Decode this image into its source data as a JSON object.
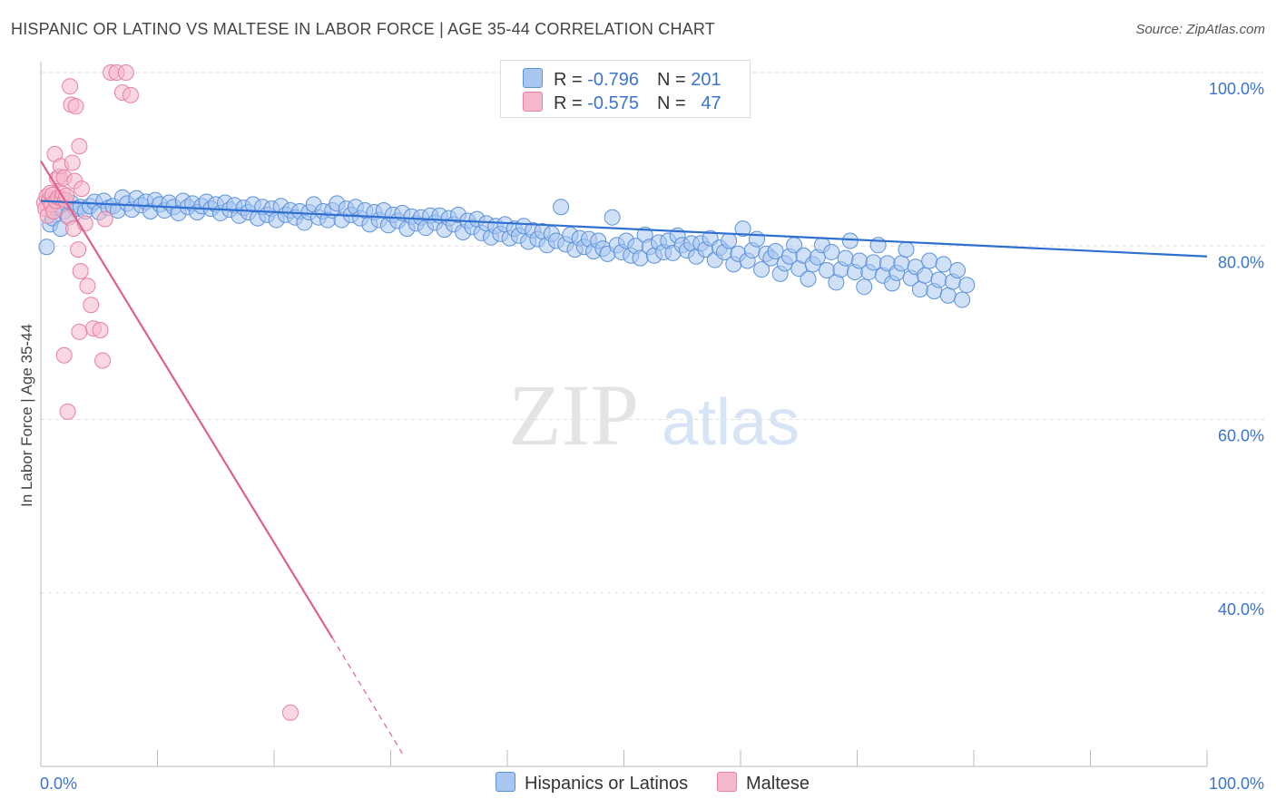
{
  "title": "HISPANIC OR LATINO VS MALTESE IN LABOR FORCE | AGE 35-44 CORRELATION CHART",
  "source": "Source: ZipAtlas.com",
  "watermark": {
    "zip": "ZIP",
    "atlas": "atlas"
  },
  "legend_top": [
    {
      "r_label": "R = ",
      "r_value": "-0.796",
      "n_label": "N = ",
      "n_value": "201"
    },
    {
      "r_label": "R = ",
      "r_value": "-0.575",
      "n_label": "N = ",
      "n_value": "47"
    }
  ],
  "legend_bottom": [
    {
      "label": "Hispanics or Latinos"
    },
    {
      "label": "Maltese"
    }
  ],
  "colors": {
    "blue_fill": "#a9c6f0",
    "blue_stroke": "#5b92dc",
    "blue_line": "#2f6fd1",
    "pink_fill": "#f6b8cb",
    "pink_stroke": "#e97fa2",
    "pink_line": "#e0608c",
    "tick_label": "#3a74d0",
    "grid": "#dddddd"
  },
  "chart_data": {
    "type": "scatter",
    "title": "HISPANIC OR LATINO VS MALTESE IN LABOR FORCE | AGE 35-44 CORRELATION CHART",
    "xlabel": "",
    "ylabel": "In Labor Force | Age 35-44",
    "xlim": [
      0,
      100
    ],
    "ylim": [
      20,
      100
    ],
    "x_tick_labels": [
      "0.0%",
      "100.0%"
    ],
    "y_ticks": [
      100,
      80,
      60,
      40
    ],
    "y_tick_labels": [
      "100.0%",
      "80.0%",
      "60.0%",
      "40.0%"
    ],
    "grid": true,
    "legend_position": "top-center",
    "series": [
      {
        "name": "Hispanics or Latinos",
        "R": -0.796,
        "N": 201,
        "trend": {
          "x": [
            0,
            100
          ],
          "y": [
            85.2,
            78.8
          ]
        },
        "points": [
          [
            0.5,
            79.9
          ],
          [
            0.8,
            82.5
          ],
          [
            1.0,
            83.2
          ],
          [
            1.3,
            84.4
          ],
          [
            1.7,
            82.0
          ],
          [
            2.0,
            84.0
          ],
          [
            2.3,
            83.5
          ],
          [
            2.6,
            85.0
          ],
          [
            3.0,
            84.3
          ],
          [
            3.4,
            84.5
          ],
          [
            3.8,
            84.0
          ],
          [
            4.2,
            84.6
          ],
          [
            4.6,
            85.1
          ],
          [
            5.0,
            83.9
          ],
          [
            5.4,
            85.2
          ],
          [
            5.8,
            84.4
          ],
          [
            6.2,
            84.6
          ],
          [
            6.6,
            84.1
          ],
          [
            7.0,
            85.6
          ],
          [
            7.4,
            84.9
          ],
          [
            7.8,
            84.2
          ],
          [
            8.2,
            85.5
          ],
          [
            8.6,
            84.7
          ],
          [
            9.0,
            85.1
          ],
          [
            9.4,
            84.0
          ],
          [
            9.8,
            85.3
          ],
          [
            10.2,
            84.8
          ],
          [
            10.6,
            84.1
          ],
          [
            11.0,
            85.0
          ],
          [
            11.4,
            84.5
          ],
          [
            11.8,
            83.8
          ],
          [
            12.2,
            85.2
          ],
          [
            12.6,
            84.5
          ],
          [
            13.0,
            84.9
          ],
          [
            13.4,
            83.9
          ],
          [
            13.8,
            84.6
          ],
          [
            14.2,
            85.1
          ],
          [
            14.6,
            84.3
          ],
          [
            15.0,
            84.8
          ],
          [
            15.4,
            83.8
          ],
          [
            15.8,
            85.0
          ],
          [
            16.2,
            84.2
          ],
          [
            16.6,
            84.7
          ],
          [
            17.0,
            83.5
          ],
          [
            17.4,
            84.4
          ],
          [
            17.8,
            83.9
          ],
          [
            18.2,
            84.8
          ],
          [
            18.6,
            83.2
          ],
          [
            19.0,
            84.5
          ],
          [
            19.4,
            83.6
          ],
          [
            19.8,
            84.3
          ],
          [
            20.2,
            83.0
          ],
          [
            20.6,
            84.6
          ],
          [
            21.0,
            83.6
          ],
          [
            21.4,
            84.1
          ],
          [
            21.8,
            83.3
          ],
          [
            22.2,
            84.0
          ],
          [
            22.6,
            82.7
          ],
          [
            23.0,
            83.9
          ],
          [
            23.4,
            84.8
          ],
          [
            23.8,
            83.3
          ],
          [
            24.2,
            84.0
          ],
          [
            24.6,
            83.0
          ],
          [
            25.0,
            84.1
          ],
          [
            25.4,
            84.9
          ],
          [
            25.8,
            83.0
          ],
          [
            26.2,
            84.3
          ],
          [
            26.6,
            83.6
          ],
          [
            27.0,
            84.5
          ],
          [
            27.4,
            83.2
          ],
          [
            27.8,
            84.1
          ],
          [
            28.2,
            82.5
          ],
          [
            28.6,
            83.9
          ],
          [
            29.0,
            83.0
          ],
          [
            29.4,
            84.1
          ],
          [
            29.8,
            82.4
          ],
          [
            30.2,
            83.6
          ],
          [
            30.6,
            82.9
          ],
          [
            31.0,
            83.8
          ],
          [
            31.4,
            82.0
          ],
          [
            31.8,
            83.4
          ],
          [
            32.2,
            82.6
          ],
          [
            32.6,
            83.3
          ],
          [
            33.0,
            82.1
          ],
          [
            33.4,
            83.5
          ],
          [
            33.8,
            82.7
          ],
          [
            34.2,
            83.5
          ],
          [
            34.6,
            81.9
          ],
          [
            35.0,
            83.2
          ],
          [
            35.4,
            82.5
          ],
          [
            35.8,
            83.6
          ],
          [
            36.2,
            81.6
          ],
          [
            36.6,
            82.9
          ],
          [
            37.0,
            82.2
          ],
          [
            37.4,
            83.1
          ],
          [
            37.8,
            81.5
          ],
          [
            38.2,
            82.6
          ],
          [
            38.6,
            81.0
          ],
          [
            39.0,
            82.3
          ],
          [
            39.4,
            81.4
          ],
          [
            39.8,
            82.5
          ],
          [
            40.2,
            80.9
          ],
          [
            40.6,
            82.0
          ],
          [
            41.0,
            81.2
          ],
          [
            41.4,
            82.3
          ],
          [
            41.8,
            80.5
          ],
          [
            42.2,
            81.8
          ],
          [
            42.6,
            80.8
          ],
          [
            43.0,
            81.7
          ],
          [
            43.4,
            80.1
          ],
          [
            43.8,
            81.4
          ],
          [
            44.2,
            80.6
          ],
          [
            44.6,
            84.5
          ],
          [
            45.0,
            80.2
          ],
          [
            45.4,
            81.3
          ],
          [
            45.8,
            79.6
          ],
          [
            46.2,
            80.9
          ],
          [
            46.6,
            79.9
          ],
          [
            47.0,
            80.8
          ],
          [
            47.4,
            79.4
          ],
          [
            47.8,
            80.6
          ],
          [
            48.2,
            79.7
          ],
          [
            48.6,
            79.1
          ],
          [
            49.0,
            83.3
          ],
          [
            49.4,
            80.1
          ],
          [
            49.8,
            79.3
          ],
          [
            50.2,
            80.6
          ],
          [
            50.6,
            78.9
          ],
          [
            51.0,
            80.0
          ],
          [
            51.4,
            78.6
          ],
          [
            51.8,
            81.3
          ],
          [
            52.2,
            79.9
          ],
          [
            52.6,
            78.9
          ],
          [
            53.0,
            80.4
          ],
          [
            53.4,
            79.3
          ],
          [
            53.8,
            80.6
          ],
          [
            54.2,
            79.2
          ],
          [
            54.6,
            81.2
          ],
          [
            55.0,
            80.1
          ],
          [
            55.4,
            79.5
          ],
          [
            55.8,
            80.3
          ],
          [
            56.2,
            78.8
          ],
          [
            56.6,
            80.3
          ],
          [
            57.0,
            79.6
          ],
          [
            57.4,
            80.9
          ],
          [
            57.8,
            78.4
          ],
          [
            58.2,
            79.8
          ],
          [
            58.6,
            79.3
          ],
          [
            59.0,
            80.6
          ],
          [
            59.4,
            77.9
          ],
          [
            59.8,
            79.1
          ],
          [
            60.2,
            82.0
          ],
          [
            60.6,
            78.3
          ],
          [
            61.0,
            79.5
          ],
          [
            61.4,
            80.8
          ],
          [
            61.8,
            77.3
          ],
          [
            62.2,
            79.1
          ],
          [
            62.6,
            78.6
          ],
          [
            63.0,
            79.4
          ],
          [
            63.4,
            76.8
          ],
          [
            63.8,
            78.0
          ],
          [
            64.2,
            78.8
          ],
          [
            64.6,
            80.1
          ],
          [
            65.0,
            77.4
          ],
          [
            65.4,
            78.9
          ],
          [
            65.8,
            76.2
          ],
          [
            66.2,
            77.9
          ],
          [
            66.6,
            78.7
          ],
          [
            67.0,
            80.1
          ],
          [
            67.4,
            77.2
          ],
          [
            67.8,
            79.3
          ],
          [
            68.2,
            75.8
          ],
          [
            68.6,
            77.3
          ],
          [
            69.0,
            78.6
          ],
          [
            69.4,
            80.6
          ],
          [
            69.8,
            77.0
          ],
          [
            70.2,
            78.3
          ],
          [
            70.6,
            75.3
          ],
          [
            71.0,
            77.0
          ],
          [
            71.4,
            78.1
          ],
          [
            71.8,
            80.1
          ],
          [
            72.2,
            76.6
          ],
          [
            72.6,
            78.0
          ],
          [
            73.0,
            75.7
          ],
          [
            73.4,
            76.9
          ],
          [
            73.8,
            78.0
          ],
          [
            74.2,
            79.6
          ],
          [
            74.6,
            76.3
          ],
          [
            75.0,
            77.6
          ],
          [
            75.4,
            75.0
          ],
          [
            75.8,
            76.6
          ],
          [
            76.2,
            78.3
          ],
          [
            76.6,
            74.8
          ],
          [
            77.0,
            76.1
          ],
          [
            77.4,
            77.9
          ],
          [
            77.8,
            74.3
          ],
          [
            78.2,
            75.9
          ],
          [
            78.6,
            77.2
          ],
          [
            79.0,
            73.8
          ],
          [
            79.4,
            75.5
          ]
        ]
      },
      {
        "name": "Maltese",
        "R": -0.575,
        "N": 47,
        "trend": {
          "x": [
            0,
            25
          ],
          "y": [
            89.8,
            34.8
          ]
        },
        "trend_dashed": {
          "x": [
            25,
            31
          ],
          "y": [
            34.8,
            21.5
          ]
        },
        "points": [
          [
            0.3,
            85.0
          ],
          [
            0.4,
            84.3
          ],
          [
            0.5,
            85.7
          ],
          [
            0.6,
            83.5
          ],
          [
            0.7,
            85.3
          ],
          [
            0.8,
            86.1
          ],
          [
            0.9,
            84.8
          ],
          [
            1.0,
            85.9
          ],
          [
            1.1,
            84.0
          ],
          [
            1.2,
            90.6
          ],
          [
            1.3,
            85.2
          ],
          [
            1.4,
            87.8
          ],
          [
            1.5,
            85.6
          ],
          [
            1.6,
            88.0
          ],
          [
            1.7,
            89.2
          ],
          [
            1.8,
            85.5
          ],
          [
            1.9,
            86.0
          ],
          [
            2.0,
            87.9
          ],
          [
            2.1,
            85.3
          ],
          [
            2.2,
            85.8
          ],
          [
            2.4,
            83.3
          ],
          [
            2.5,
            98.4
          ],
          [
            2.6,
            96.3
          ],
          [
            2.7,
            89.6
          ],
          [
            2.8,
            82.0
          ],
          [
            2.9,
            87.5
          ],
          [
            3.0,
            96.1
          ],
          [
            3.2,
            79.6
          ],
          [
            3.3,
            91.5
          ],
          [
            3.4,
            77.1
          ],
          [
            2.0,
            67.4
          ],
          [
            2.3,
            60.9
          ],
          [
            3.5,
            86.6
          ],
          [
            3.8,
            82.6
          ],
          [
            4.0,
            75.4
          ],
          [
            4.3,
            73.2
          ],
          [
            4.5,
            70.5
          ],
          [
            3.3,
            70.1
          ],
          [
            5.1,
            70.3
          ],
          [
            5.3,
            66.8
          ],
          [
            5.5,
            83.1
          ],
          [
            6.0,
            100.0
          ],
          [
            6.5,
            100.0
          ],
          [
            7.0,
            97.7
          ],
          [
            7.3,
            100.0
          ],
          [
            7.7,
            97.4
          ],
          [
            21.4,
            26.2
          ]
        ]
      }
    ]
  }
}
